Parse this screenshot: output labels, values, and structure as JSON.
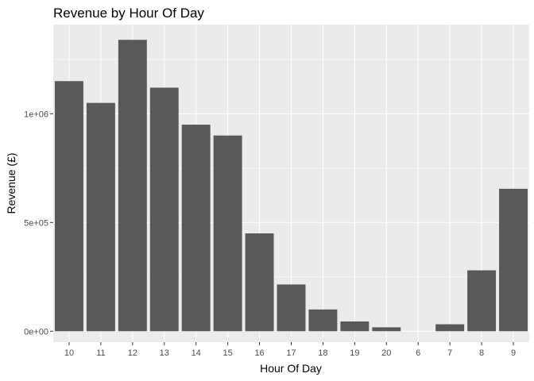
{
  "chart_data": {
    "type": "bar",
    "title": "Revenue by Hour Of Day",
    "xlabel": "Hour Of Day",
    "ylabel": "Revenue (£)",
    "categories": [
      "10",
      "11",
      "12",
      "13",
      "14",
      "15",
      "16",
      "17",
      "18",
      "19",
      "20",
      "6",
      "7",
      "8",
      "9"
    ],
    "values": [
      1150000,
      1050000,
      1340000,
      1120000,
      950000,
      900000,
      450000,
      215000,
      100000,
      45000,
      18000,
      0,
      32000,
      280000,
      655000
    ],
    "ylim": [
      -50000,
      1410000
    ],
    "yticks": [
      0,
      500000,
      1000000
    ],
    "ytick_labels": [
      "0e+00",
      "5e+05",
      "1e+06"
    ],
    "grid": true,
    "colors": {
      "bar": "#595959",
      "panel": "#ebebeb",
      "grid_major": "#ffffff",
      "tick": "#333333"
    }
  }
}
